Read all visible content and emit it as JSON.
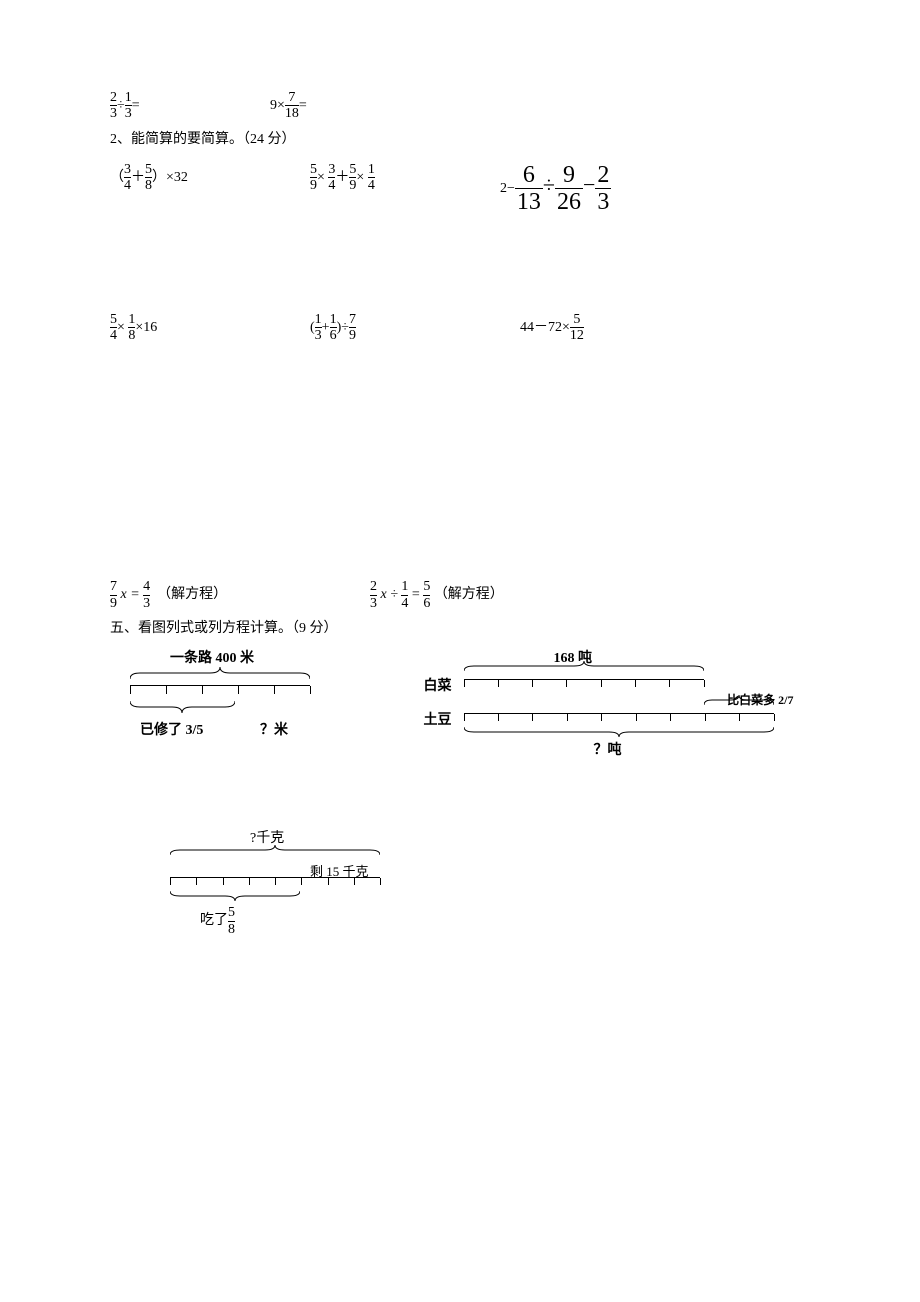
{
  "colors": {
    "text": "#000000",
    "bg": "#ffffff"
  },
  "fonts": {
    "base_size": 14,
    "big_frac_size": 24,
    "family": "SimSun"
  },
  "line1": {
    "expr1": {
      "a_num": "2",
      "a_den": "3",
      "op": "÷",
      "b_num": "1",
      "b_den": "3",
      "eq": "="
    },
    "expr2": {
      "a": "9",
      "op": "×",
      "b_num": "7",
      "b_den": "18",
      "eq": "="
    }
  },
  "q2_label": "2、能简算的要简算。（24 分）",
  "rowA": {
    "c1": {
      "lp": "（",
      "a_num": "3",
      "a_den": "4",
      "plus": "＋",
      "b_num": "5",
      "b_den": "8",
      "rp": "）",
      "mul": "×32"
    },
    "c2": {
      "a_num": "5",
      "a_den": "9",
      "m1": "×",
      "b_num": "3",
      "b_den": "4",
      "plus": "＋",
      "c_num": "5",
      "c_den": "9",
      "m2": "×",
      "d_num": "1",
      "d_den": "4"
    },
    "c3": {
      "lead": "2−",
      "a_num": "6",
      "a_den": "13",
      "div": "÷",
      "b_num": "9",
      "b_den": "26",
      "minus": "−",
      "c_num": "2",
      "c_den": "3"
    }
  },
  "rowB": {
    "c1": {
      "a_num": "5",
      "a_den": "4",
      "m1": "×",
      "b_num": "1",
      "b_den": "8",
      "tail": "×16"
    },
    "c2": {
      "lp": "(",
      "a_num": "1",
      "a_den": "3",
      "plus": "+",
      "b_num": "1",
      "b_den": "6",
      "rp": ")",
      "div": "÷",
      "c_num": "7",
      "c_den": "9"
    },
    "c3": {
      "lead": "44－72×",
      "a_num": "5",
      "a_den": "12"
    }
  },
  "rowC": {
    "c1": {
      "a_num": "7",
      "a_den": "9",
      "mid": "x =",
      "b_num": "4",
      "b_den": "3",
      "note": "（解方程）"
    },
    "c2": {
      "a_num": "2",
      "a_den": "3",
      "mid1": "x ÷",
      "b_num": "1",
      "b_den": "4",
      "eq": "=",
      "c_num": "5",
      "c_den": "6",
      "note": "（解方程）"
    }
  },
  "section5": "五、看图列式或列方程计算。（9 分）",
  "diag1": {
    "title": "一条路 400 米",
    "ticks": 6,
    "repaired_label": "已修了 3/5",
    "question": "？米"
  },
  "diag2": {
    "top_label": "168 吨",
    "row1_label": "白菜",
    "row2_label": "土豆",
    "ticks1": 8,
    "ticks2": 10,
    "extra_label": "比白菜多 2/7",
    "question": "？吨"
  },
  "diag3": {
    "top_label": "?千克",
    "remain_label": "剩 15 千克",
    "ticks": 9,
    "eat_prefix": "吃了",
    "eat_num": "5",
    "eat_den": "8"
  }
}
